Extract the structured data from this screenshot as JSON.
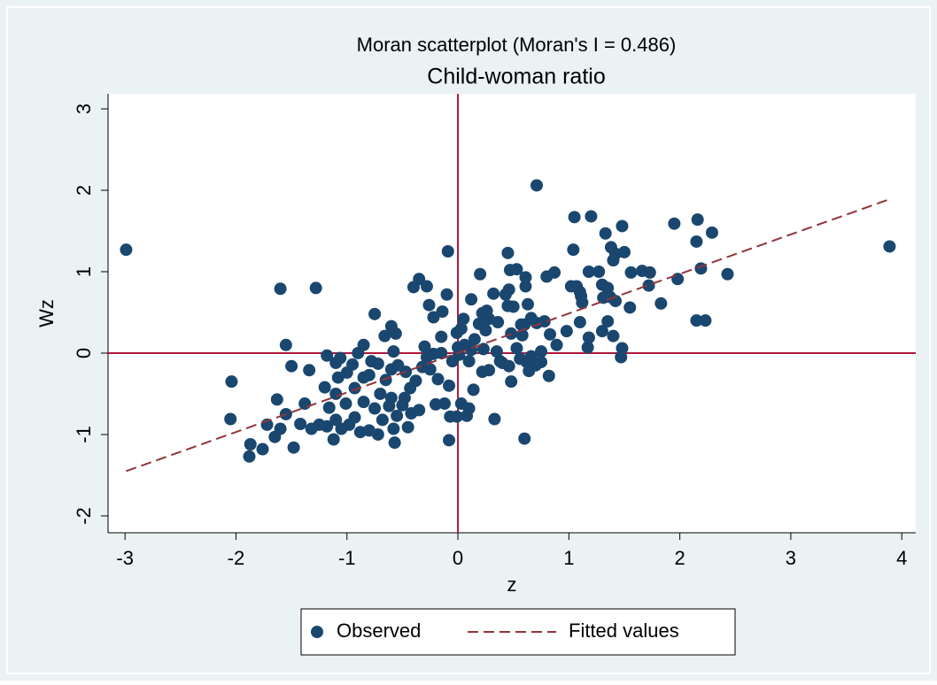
{
  "chart_data": {
    "type": "scatter",
    "title": "Moran scatterplot (Moran's I = 0.486)",
    "subtitle": "Child-woman ratio",
    "x_label": "z",
    "y_label": "Wz",
    "xlim": [
      -3.153,
      4.126
    ],
    "ylim": [
      -2.207,
      3.185
    ],
    "xticks": [
      -3,
      -2,
      -1,
      0,
      1,
      2,
      3,
      4
    ],
    "yticks": [
      -2,
      -1,
      0,
      1,
      2,
      3
    ],
    "xline": 0,
    "yline": 0,
    "refline_color": "#b0173d",
    "series": [
      {
        "name": "Observed",
        "color": "#1a476f",
        "x": [
          -2.99,
          3.89,
          0.71,
          -1.6,
          -1.28,
          -0.09,
          -2.04,
          -2.05,
          -1.88,
          -1.87,
          -1.76,
          -1.55,
          -1.5,
          -1.48,
          -1.34,
          0.6,
          -0.08,
          0.33,
          1.05,
          1.2,
          1.48,
          1.33,
          1.95,
          2.16,
          2.29,
          2.15,
          2.43,
          2.19,
          1.98,
          1.83,
          2.15,
          2.23,
          1.73,
          1.66,
          1.56,
          1.72,
          1.5,
          1.4,
          1.42,
          1.38,
          1.04,
          1.27,
          1.18,
          1.07,
          1.1,
          1.11,
          1.02,
          1.3,
          1.35,
          1.37,
          1.31,
          1.42,
          1.12,
          1.55,
          1.1,
          1.35,
          1.3,
          1.4,
          1.18,
          0.98,
          1.48,
          1.47,
          1.17,
          0.89,
          0.82,
          0.75,
          0.83,
          0.78,
          0.87,
          0.8,
          0.71,
          0.6,
          0.66,
          0.63,
          0.61,
          0.61,
          0.53,
          0.47,
          0.45,
          0.46,
          0.43,
          0.32,
          0.26,
          0.22,
          0.28,
          0.19,
          0.25,
          0.36,
          0.2,
          0.45,
          0.5,
          0.57,
          0.58,
          0.48,
          0.53,
          0.56,
          0.62,
          0.64,
          0.7,
          0.66,
          0.75,
          0.46,
          0.48,
          0.38,
          0.35,
          0.28,
          0.22,
          0.23,
          0.15,
          0.12,
          0.1,
          0.14,
          0.03,
          0.1,
          0.08,
          -0.01,
          -0.07,
          -0.12,
          0.01,
          0.0,
          -0.01,
          0.03,
          0.12,
          -0.1,
          -0.14,
          -0.22,
          -0.26,
          -0.35,
          -0.4,
          -0.28,
          -0.6,
          -0.66,
          -0.75,
          -0.56,
          -0.3,
          -0.22,
          -0.28,
          -0.32,
          -0.38,
          -0.43,
          -0.47,
          -0.54,
          -0.58,
          -0.6,
          -0.65,
          -0.72,
          -0.78,
          -0.8,
          -0.85,
          -0.9,
          -0.95,
          -1.0,
          -1.06,
          -1.1,
          -1.18,
          -1.08,
          -0.93,
          -0.85,
          -0.7,
          -0.6,
          -0.5,
          -0.55,
          -0.42,
          -0.45,
          -0.58,
          -0.57,
          -0.68,
          -0.72,
          -0.8,
          -0.88,
          -0.93,
          -0.98,
          -1.05,
          -1.1,
          -1.12,
          -1.18,
          -1.25,
          -1.32,
          -1.38,
          -1.42,
          -1.16,
          -1.1,
          -1.01,
          -1.2,
          -1.55,
          -1.63,
          -1.6,
          -1.65,
          -1.72,
          -0.15,
          -0.05,
          0.06,
          -0.18,
          -0.25,
          -0.2,
          -0.08,
          -0.35,
          -0.48,
          -0.75,
          -0.85,
          -0.62,
          -0.15,
          0.05,
          0.4
        ],
        "values": [
          1.27,
          1.31,
          2.06,
          0.79,
          0.8,
          1.25,
          -0.35,
          -0.81,
          -1.27,
          -1.12,
          -1.18,
          0.1,
          -0.16,
          -1.16,
          -0.21,
          -1.05,
          -1.07,
          -0.81,
          1.67,
          1.68,
          1.56,
          1.47,
          1.59,
          1.64,
          1.48,
          1.37,
          0.97,
          1.04,
          0.91,
          0.61,
          0.4,
          0.4,
          0.99,
          1.01,
          0.99,
          0.83,
          1.24,
          1.14,
          1.22,
          1.3,
          1.27,
          1.0,
          1.0,
          0.82,
          0.75,
          0.7,
          0.82,
          0.84,
          0.8,
          0.69,
          0.68,
          0.64,
          0.62,
          0.56,
          0.38,
          0.39,
          0.27,
          0.21,
          0.19,
          0.27,
          0.06,
          -0.05,
          0.07,
          0.1,
          -0.28,
          0.02,
          0.23,
          0.39,
          0.99,
          0.94,
          0.37,
          0.35,
          0.43,
          0.6,
          0.82,
          0.93,
          1.03,
          1.02,
          1.23,
          0.78,
          0.72,
          0.73,
          0.52,
          0.49,
          0.42,
          0.36,
          0.28,
          0.38,
          0.97,
          0.58,
          0.57,
          0.35,
          0.22,
          0.24,
          0.06,
          -0.07,
          -0.11,
          -0.22,
          -0.15,
          -0.04,
          -0.11,
          -0.16,
          -0.35,
          -0.1,
          0.02,
          -0.21,
          -0.23,
          0.05,
          0.17,
          0.04,
          -0.1,
          -0.45,
          -0.62,
          -0.68,
          -0.77,
          -0.78,
          -0.78,
          -0.62,
          -0.02,
          0.07,
          0.25,
          0.3,
          0.66,
          0.72,
          0.51,
          0.44,
          0.59,
          0.91,
          0.81,
          0.82,
          0.33,
          0.21,
          0.48,
          0.24,
          0.08,
          -0.01,
          -0.05,
          -0.17,
          -0.34,
          -0.43,
          -0.23,
          -0.15,
          0.02,
          -0.2,
          -0.33,
          -0.13,
          -0.1,
          -0.27,
          0.1,
          0.0,
          -0.14,
          -0.24,
          -0.06,
          -0.12,
          -0.03,
          -0.3,
          -0.43,
          -0.6,
          -0.5,
          -0.55,
          -0.64,
          -0.77,
          -0.74,
          -0.91,
          -0.93,
          -1.1,
          -0.82,
          -1.0,
          -0.95,
          -0.97,
          -0.79,
          -0.88,
          -0.93,
          -0.82,
          -1.06,
          -0.9,
          -0.88,
          -0.93,
          -0.62,
          -0.87,
          -0.67,
          -0.5,
          -0.62,
          -0.42,
          -0.75,
          -0.57,
          -0.93,
          -1.03,
          -0.88,
          0.0,
          -0.1,
          0.1,
          -0.32,
          -0.2,
          -0.63,
          -0.4,
          -0.7,
          -0.55,
          -0.68,
          -0.3,
          -0.65,
          0.2,
          0.42,
          -0.12
        ]
      },
      {
        "name": "Fitted values",
        "color": "#90353b",
        "style": "dashed",
        "x": [
          -2.99,
          3.89
        ],
        "values": [
          -1.45,
          1.89
        ]
      }
    ],
    "legend": "bottom"
  }
}
